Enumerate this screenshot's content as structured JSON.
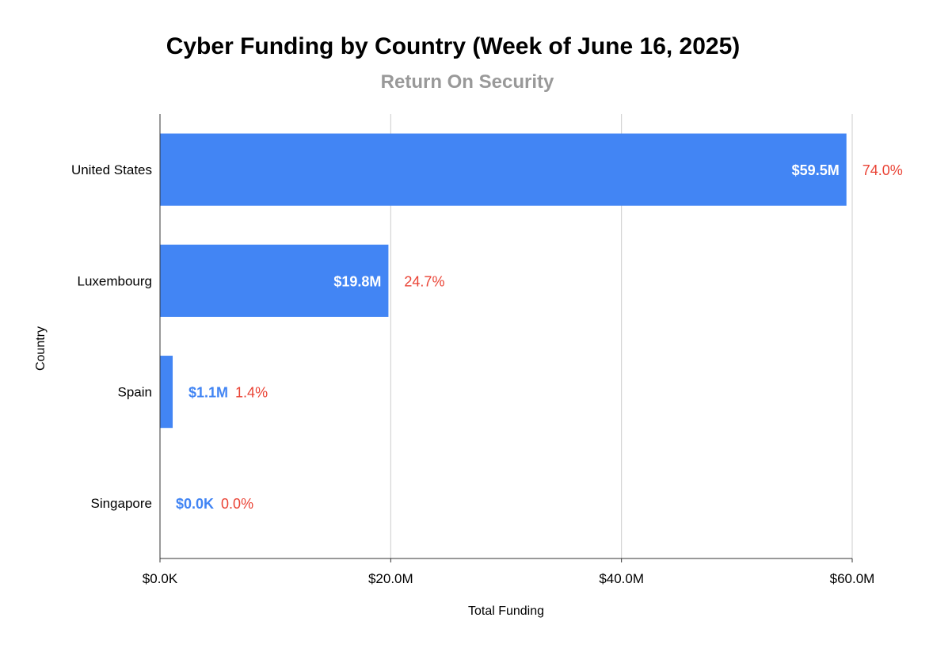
{
  "chart_data": {
    "type": "bar",
    "orientation": "horizontal",
    "title": "Cyber Funding by Country (Week of June 16, 2025)",
    "subtitle": "Return On Security",
    "xlabel": "Total Funding",
    "ylabel": "Country",
    "xlim": [
      0,
      60
    ],
    "x_unit": "millions USD",
    "x_ticks": [
      0,
      20,
      40,
      60
    ],
    "x_tick_labels": [
      "$0.0K",
      "$20.0M",
      "$40.0M",
      "$60.0M"
    ],
    "grid": true,
    "categories": [
      "United States",
      "Luxembourg",
      "Spain",
      "Singapore"
    ],
    "values": [
      59.5,
      19.8,
      1.1,
      0.0
    ],
    "value_labels": [
      "$59.5M",
      "$19.8M",
      "$1.1M",
      "$0.0K"
    ],
    "percent_labels": [
      "74.0%",
      "24.7%",
      "1.4%",
      "0.0%"
    ],
    "colors": {
      "bar": "#4285f4",
      "value_label_inside": "#ffffff",
      "value_label_outside": "#4285f4",
      "percent_label": "#ea4335",
      "title": "#000000",
      "subtitle": "#999999",
      "grid": "#cccccc",
      "axis": "#333333"
    }
  }
}
